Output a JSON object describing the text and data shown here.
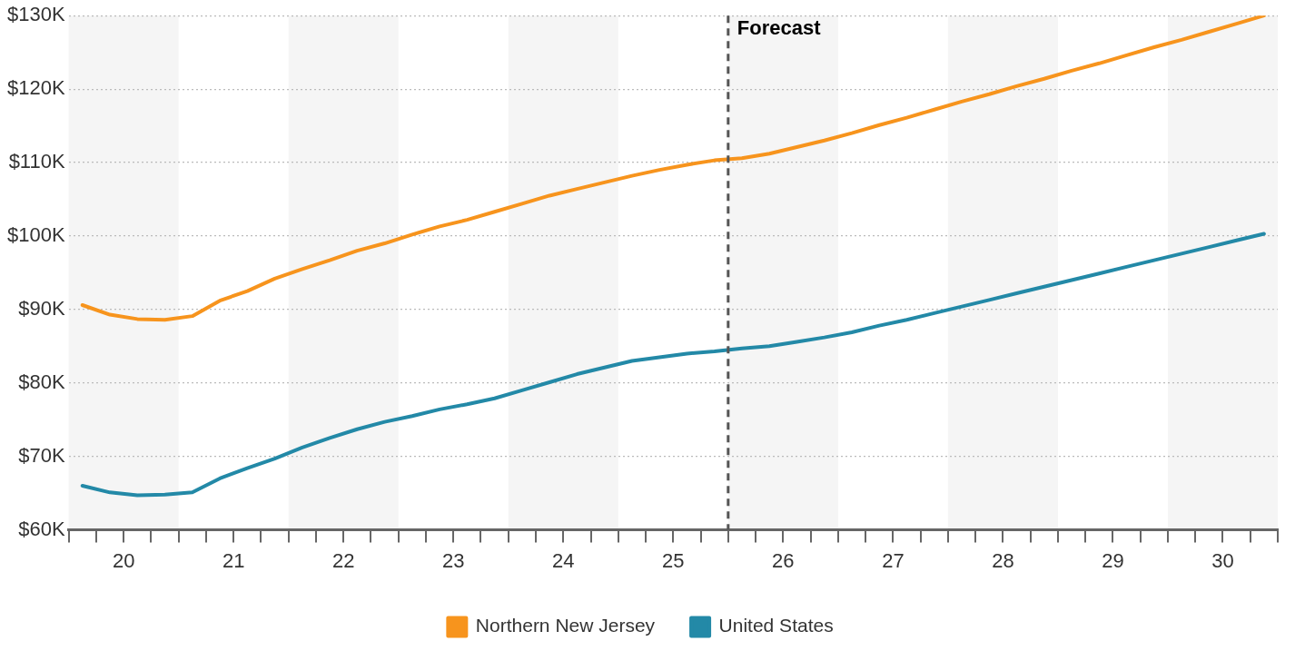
{
  "chart_data": {
    "type": "line",
    "x": [
      19.625,
      19.875,
      20.125,
      20.375,
      20.625,
      20.875,
      21.125,
      21.375,
      21.625,
      21.875,
      22.125,
      22.375,
      22.625,
      22.875,
      23.125,
      23.375,
      23.625,
      23.875,
      24.125,
      24.375,
      24.625,
      24.875,
      25.125,
      25.375,
      25.625,
      25.875,
      26.125,
      26.375,
      26.625,
      26.875,
      27.125,
      27.375,
      27.625,
      27.875,
      28.125,
      28.375,
      28.625,
      28.875,
      29.125,
      29.375,
      29.625,
      29.875,
      30.125,
      30.375
    ],
    "series": [
      {
        "name": "Northern New Jersey",
        "color": "#f7941d",
        "values": [
          90.6,
          89.3,
          88.7,
          88.6,
          89.1,
          91.2,
          92.5,
          94.2,
          95.5,
          96.7,
          98.0,
          99.0,
          100.2,
          101.3,
          102.2,
          103.3,
          104.4,
          105.5,
          106.4,
          107.3,
          108.2,
          109.0,
          109.7,
          110.3,
          110.6,
          111.2,
          112.1,
          113.0,
          114.0,
          115.1,
          116.1,
          117.2,
          118.3,
          119.3,
          120.4,
          121.4,
          122.5,
          123.5,
          124.6,
          125.7,
          126.7,
          127.8,
          128.9,
          130.0
        ]
      },
      {
        "name": "United States",
        "color": "#2389a7",
        "values": [
          66.0,
          65.1,
          64.7,
          64.8,
          65.1,
          67.0,
          68.4,
          69.7,
          71.2,
          72.5,
          73.7,
          74.7,
          75.5,
          76.4,
          77.1,
          77.9,
          79.0,
          80.1,
          81.2,
          82.1,
          83.0,
          83.5,
          84.0,
          84.3,
          84.7,
          85.0,
          85.6,
          86.2,
          86.9,
          87.8,
          88.6,
          89.5,
          90.4,
          91.3,
          92.2,
          93.1,
          94.0,
          94.9,
          95.8,
          96.7,
          97.6,
          98.5,
          99.4,
          100.3
        ]
      }
    ],
    "xlim": [
      19.5,
      30.5
    ],
    "xticks": [
      {
        "value": 19.5,
        "label": null
      },
      {
        "value": 19.75,
        "label": null
      },
      20,
      {
        "value": 20.25,
        "label": null
      },
      {
        "value": 20.5,
        "label": null
      },
      {
        "value": 20.75,
        "label": null
      },
      21,
      {
        "value": 21.25,
        "label": null
      },
      {
        "value": 21.5,
        "label": null
      },
      {
        "value": 21.75,
        "label": null
      },
      22,
      {
        "value": 22.25,
        "label": null
      },
      {
        "value": 22.5,
        "label": null
      },
      {
        "value": 22.75,
        "label": null
      },
      23,
      {
        "value": 23.25,
        "label": null
      },
      {
        "value": 23.5,
        "label": null
      },
      {
        "value": 23.75,
        "label": null
      },
      24,
      {
        "value": 24.25,
        "label": null
      },
      {
        "value": 24.5,
        "label": null
      },
      {
        "value": 24.75,
        "label": null
      },
      25,
      {
        "value": 25.25,
        "label": null
      },
      {
        "value": 25.5,
        "label": null
      },
      {
        "value": 25.75,
        "label": null
      },
      26,
      {
        "value": 26.25,
        "label": null
      },
      {
        "value": 26.5,
        "label": null
      },
      {
        "value": 26.75,
        "label": null
      },
      27,
      {
        "value": 27.25,
        "label": null
      },
      {
        "value": 27.5,
        "label": null
      },
      {
        "value": 27.75,
        "label": null
      },
      28,
      {
        "value": 28.25,
        "label": null
      },
      {
        "value": 28.5,
        "label": null
      },
      {
        "value": 28.75,
        "label": null
      },
      29,
      {
        "value": 29.25,
        "label": null
      },
      {
        "value": 29.5,
        "label": null
      },
      {
        "value": 29.75,
        "label": null
      },
      30,
      {
        "value": 30.25,
        "label": null
      },
      {
        "value": 30.5,
        "label": null
      }
    ],
    "ylim": [
      60,
      130
    ],
    "yticks": [
      {
        "value": 60,
        "label": "$60K"
      },
      {
        "value": 70,
        "label": "$70K"
      },
      {
        "value": 80,
        "label": "$80K"
      },
      {
        "value": 90,
        "label": "$90K"
      },
      {
        "value": 100,
        "label": "$100K"
      },
      {
        "value": 110,
        "label": "$110K"
      },
      {
        "value": 120,
        "label": "$120K"
      },
      {
        "value": 130,
        "label": "$130K"
      }
    ],
    "grid": "y",
    "legend": "bottom",
    "marker": "none",
    "line_style": "solid",
    "ref_lines": [
      {
        "axis": "x",
        "value": 25.5,
        "label": "Forecast",
        "color": "#555555",
        "line_style": "dashed"
      }
    ],
    "bands": [
      {
        "axis": "x",
        "from": 19.5,
        "to": 20.5,
        "color": "#f5f5f5"
      },
      {
        "axis": "x",
        "from": 21.5,
        "to": 22.5,
        "color": "#f5f5f5"
      },
      {
        "axis": "x",
        "from": 23.5,
        "to": 24.5,
        "color": "#f5f5f5"
      },
      {
        "axis": "x",
        "from": 25.5,
        "to": 26.5,
        "color": "#f5f5f5"
      },
      {
        "axis": "x",
        "from": 27.5,
        "to": 28.5,
        "color": "#f5f5f5"
      },
      {
        "axis": "x",
        "from": 29.5,
        "to": 30.5,
        "color": "#f5f5f5"
      }
    ]
  }
}
